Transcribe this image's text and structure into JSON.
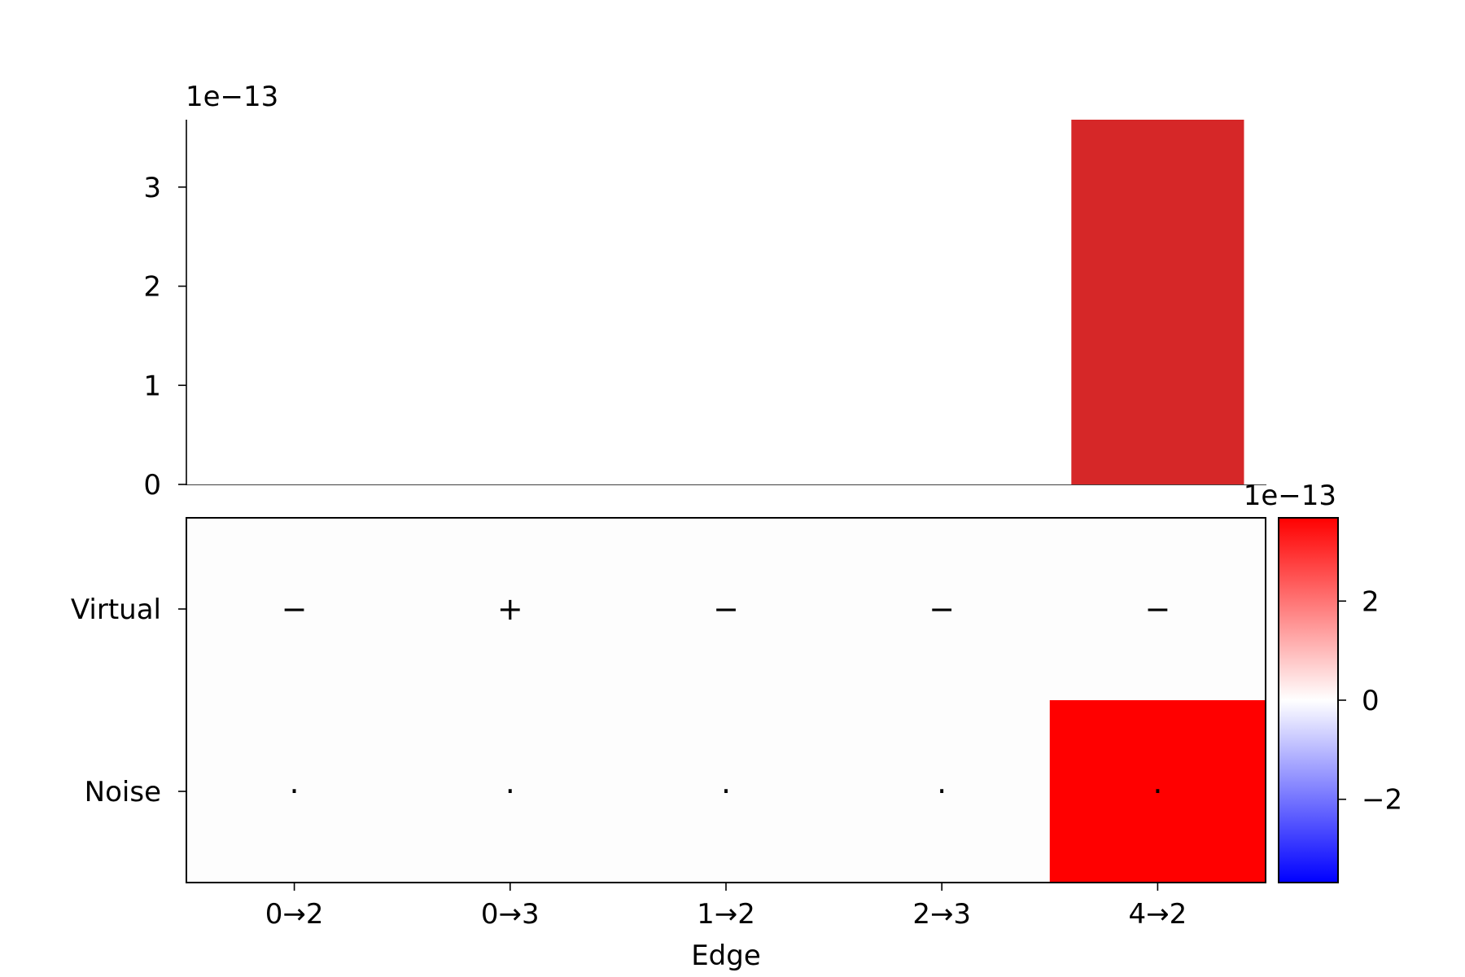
{
  "chart_data": [
    {
      "type": "bar",
      "categories": [
        "0→2",
        "0→3",
        "1→2",
        "2→3",
        "4→2"
      ],
      "values": [
        0,
        0,
        0,
        0,
        3.68
      ],
      "ylim": [
        0,
        3.68
      ],
      "yticks": [
        "0",
        "1",
        "2",
        "3"
      ],
      "offset_label": "1e−13",
      "bar_color": "#d62728"
    },
    {
      "type": "heatmap",
      "columns": [
        "0→2",
        "0→3",
        "1→2",
        "2→3",
        "4→2"
      ],
      "rows": [
        "Virtual",
        "Noise"
      ],
      "values": [
        [
          0,
          0,
          0,
          0,
          0
        ],
        [
          0,
          0,
          0,
          0,
          3.68
        ]
      ],
      "symbols": [
        [
          "−",
          "+",
          "−",
          "−",
          "−"
        ],
        [
          "·",
          "·",
          "·",
          "·",
          "·"
        ]
      ],
      "xlabel": "Edge",
      "colorbar": {
        "range": [
          -3.68,
          3.68
        ],
        "ticks": [
          "2",
          "0",
          "−2"
        ],
        "offset_label": "1e−13",
        "colors": [
          "#0000ff",
          "#ffffff",
          "#ff0000"
        ]
      }
    }
  ]
}
